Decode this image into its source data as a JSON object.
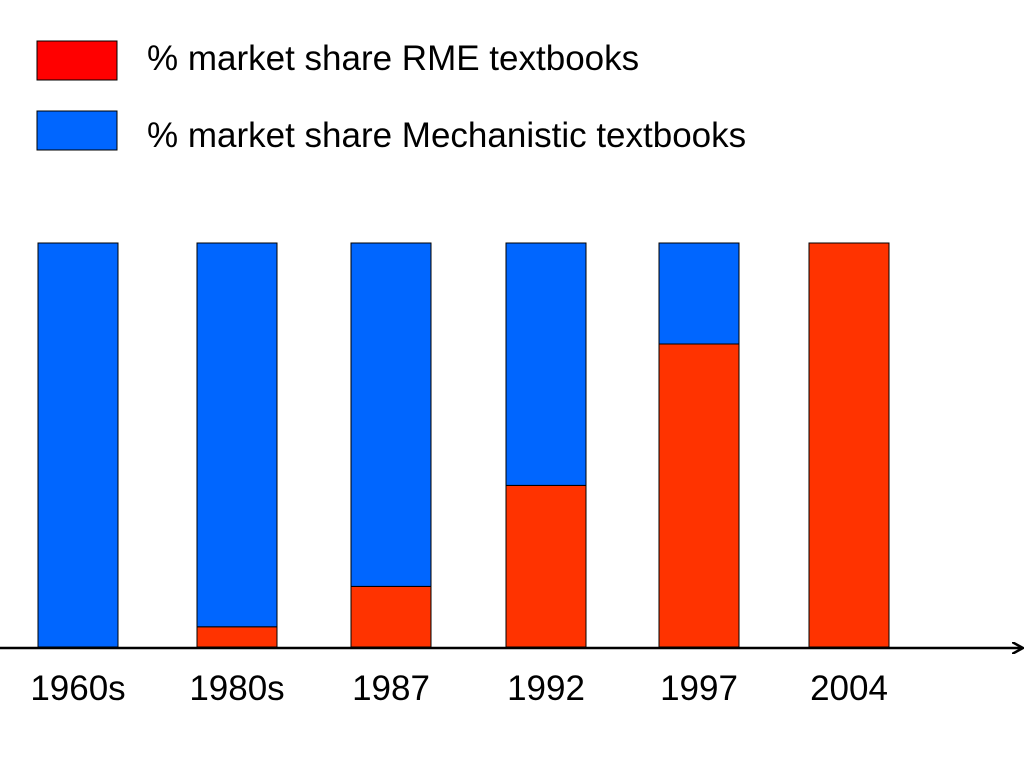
{
  "chart_data": {
    "type": "bar",
    "stacked": true,
    "categories": [
      "1960s",
      "1980s",
      "1987",
      "1992",
      "1997",
      "2004"
    ],
    "series": [
      {
        "name": "% market share RME textbooks",
        "color": "#ff3300",
        "legend_color": "#ff0000",
        "values": [
          0,
          5,
          15,
          40,
          75,
          100
        ]
      },
      {
        "name": "% market share Mechanistic textbooks",
        "color": "#0066ff",
        "legend_color": "#0066ff",
        "values": [
          100,
          95,
          85,
          60,
          25,
          0
        ]
      }
    ],
    "ylim": [
      0,
      100
    ],
    "grid": false,
    "legend": "top-left",
    "axis": "x-axis arrow"
  }
}
